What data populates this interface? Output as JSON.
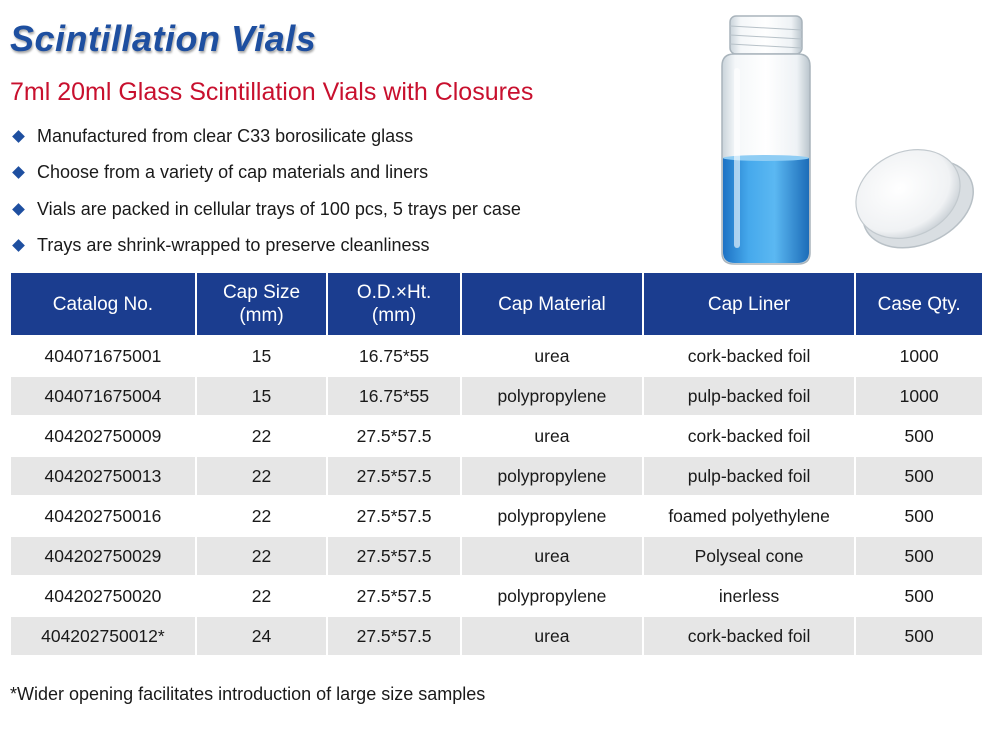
{
  "title": "Scintillation Vials",
  "subtitle": "7ml 20ml Glass Scintillation Vials with Closures",
  "bullets": [
    "Manufactured from clear C33 borosilicate glass",
    "Choose from a variety of cap materials and liners",
    "Vials are packed in cellular trays of 100 pcs, 5 trays per case",
    "Trays are shrink-wrapped to preserve cleanliness"
  ],
  "table": {
    "headers": [
      [
        "Catalog No.",
        ""
      ],
      [
        "Cap Size",
        "(mm)"
      ],
      [
        "O.D.×Ht.",
        "(mm)"
      ],
      [
        "Cap Material",
        ""
      ],
      [
        "Cap Liner",
        ""
      ],
      [
        "Case Qty.",
        ""
      ]
    ],
    "rows": [
      [
        "404071675001",
        "15",
        "16.75*55",
        "urea",
        "cork-backed foil",
        "1000"
      ],
      [
        "404071675004",
        "15",
        "16.75*55",
        "polypropylene",
        "pulp-backed foil",
        "1000"
      ],
      [
        "404202750009",
        "22",
        "27.5*57.5",
        "urea",
        "cork-backed foil",
        "500"
      ],
      [
        "404202750013",
        "22",
        "27.5*57.5",
        "polypropylene",
        "pulp-backed foil",
        "500"
      ],
      [
        "404202750016",
        "22",
        "27.5*57.5",
        "polypropylene",
        "foamed polyethylene",
        "500"
      ],
      [
        "404202750029",
        "22",
        "27.5*57.5",
        "urea",
        "Polyseal cone",
        "500"
      ],
      [
        "404202750020",
        "22",
        "27.5*57.5",
        "polypropylene",
        "inerless",
        "500"
      ],
      [
        "404202750012*",
        "24",
        "27.5*57.5",
        "urea",
        "cork-backed foil",
        "500"
      ]
    ]
  },
  "footnote": "*Wider opening facilitates introduction of large size samples",
  "colors": {
    "title_blue": "#1e4fa0",
    "subtitle_red": "#c8102e",
    "header_bg": "#1b3d8f",
    "alt_row_bg": "#e6e6e6",
    "liquid_blue": "#3a9fe0"
  },
  "icons": {
    "bullet": "diamond-bullet-icon",
    "product": "vial-with-cap-illustration"
  }
}
